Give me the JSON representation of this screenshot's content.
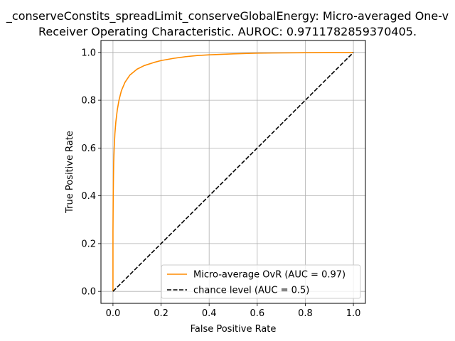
{
  "chart_data": {
    "type": "line",
    "title_lines": [
      "_conserveConstits_spreadLimit_conserveGlobalEnergy: Micro-averaged One-v",
      "Receiver Operating Characteristic. AUROC: 0.9711782859370405."
    ],
    "xlabel": "False Positive Rate",
    "ylabel": "True Positive Rate",
    "xlim": [
      -0.05,
      1.05
    ],
    "ylim": [
      -0.05,
      1.05
    ],
    "x_ticks": [
      0.0,
      0.2,
      0.4,
      0.6,
      0.8,
      1.0
    ],
    "y_ticks": [
      0.0,
      0.2,
      0.4,
      0.6,
      0.8,
      1.0
    ],
    "x_tick_labels": [
      "0.0",
      "0.2",
      "0.4",
      "0.6",
      "0.8",
      "1.0"
    ],
    "y_tick_labels": [
      "0.0",
      "0.2",
      "0.4",
      "0.6",
      "0.8",
      "1.0"
    ],
    "grid": true,
    "legend_position": "lower-right",
    "series": [
      {
        "name": "Micro-average OvR (AUC = 0.97)",
        "color": "#ff8c00",
        "style": "solid",
        "x": [
          0.0,
          0.0,
          0.001,
          0.002,
          0.003,
          0.005,
          0.008,
          0.012,
          0.018,
          0.025,
          0.035,
          0.05,
          0.07,
          0.1,
          0.13,
          0.17,
          0.2,
          0.25,
          0.3,
          0.35,
          0.4,
          0.5,
          0.6,
          0.7,
          0.8,
          0.9,
          1.0
        ],
        "y": [
          0.0,
          0.25,
          0.4,
          0.48,
          0.54,
          0.6,
          0.66,
          0.71,
          0.76,
          0.8,
          0.84,
          0.875,
          0.905,
          0.93,
          0.945,
          0.958,
          0.966,
          0.975,
          0.982,
          0.987,
          0.99,
          0.994,
          0.997,
          0.998,
          0.999,
          1.0,
          1.0
        ]
      },
      {
        "name": "chance level (AUC = 0.5)",
        "color": "#000000",
        "style": "dashed",
        "x": [
          0.0,
          1.0
        ],
        "y": [
          0.0,
          1.0
        ]
      }
    ]
  }
}
